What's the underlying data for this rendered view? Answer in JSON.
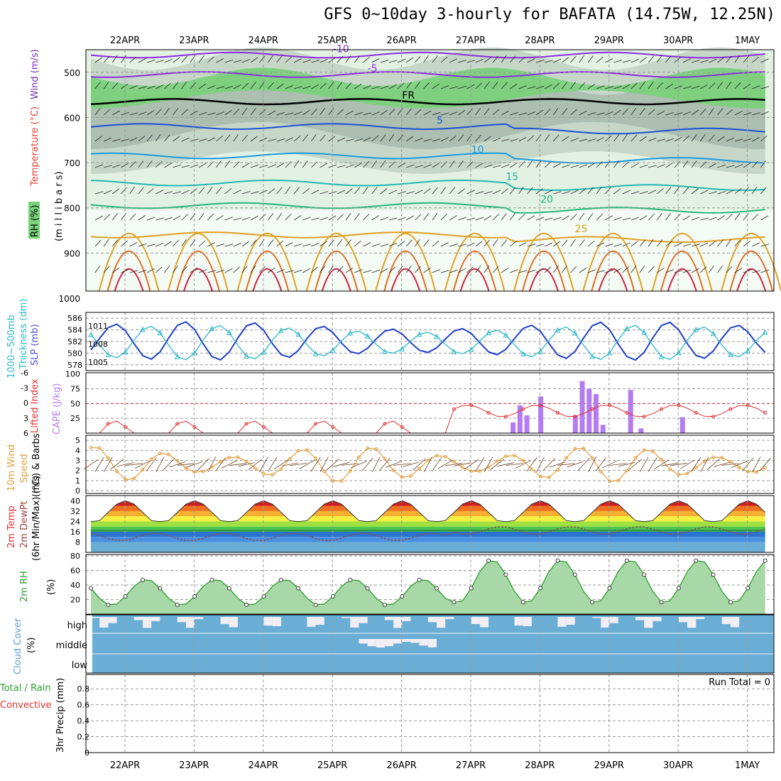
{
  "title": "GFS 0~10day 3-hourly for BAFATA (14.75W, 12.25N)",
  "colors": {
    "grid": "#9a9a9a",
    "rh_light": "#e3f1e3",
    "rh_mid": "#c2d4c4",
    "rh_sat": "#79d27a",
    "wind_mb": "#8a2be2",
    "slp": "#1f3fc8",
    "thickness": "#2ab8c8",
    "lifted": "#e03030",
    "cape": "#b57bf0",
    "wind10": "#e0a040",
    "barb": "#6a4020",
    "rh2m": "#2e9e2e",
    "cloud": "#6aaed6",
    "cloud_clear": "#f1eef4",
    "precip": "#2e9e2e"
  },
  "chart_data": {
    "days": [
      "22APR",
      "23APR",
      "24APR",
      "25APR",
      "26APR",
      "27APR",
      "28APR",
      "29APR",
      "30APR",
      "1MAY"
    ],
    "panels": [
      {
        "id": "upper_air",
        "type": "heatmap",
        "ylabels": [
          "Temperature (°C)",
          "Wind (m/s)",
          "RH (%)",
          "(m i l l i b a r s)"
        ],
        "yticks": [
          500,
          600,
          700,
          800,
          900,
          1000
        ],
        "ylim": [
          450,
          1000
        ],
        "contours": [
          {
            "label": "-10",
            "color": "#8a2be2",
            "level": 462
          },
          {
            "label": "-5",
            "color": "#8a2be2",
            "level": 505
          },
          {
            "label": "FR",
            "color": "#000000",
            "level": 565
          },
          {
            "label": "5",
            "color": "#1f4fd8",
            "level": 620
          },
          {
            "label": "10",
            "color": "#1a9be0",
            "level": 685
          },
          {
            "label": "15",
            "color": "#20b8b0",
            "level": 745
          },
          {
            "label": "20",
            "color": "#20b87a",
            "level": 795
          },
          {
            "label": "25",
            "color": "#e0a020",
            "level": 860
          }
        ]
      },
      {
        "id": "slp",
        "type": "line",
        "ylabels": [
          "Thickness (dm)",
          "1000~500mb",
          "SLP (mb)"
        ],
        "left_ticks": [
          578,
          580,
          582,
          584,
          586
        ],
        "right_ticks": [
          1005,
          1008,
          1011
        ],
        "series": [
          {
            "name": "SLP",
            "color": "#1f3fc8",
            "period_hours": 24,
            "mean": 1008.5,
            "amp": 3.2
          },
          {
            "name": "Thickness",
            "color": "#2ab8c8",
            "period_hours": 24,
            "mean": 581.8,
            "amp": 3.0
          }
        ]
      },
      {
        "id": "cape",
        "type": "bar",
        "ylabels": [
          "Lifted Index",
          "CAPE (J/kg)"
        ],
        "left_ticks": [
          "6",
          "3",
          "0",
          "-3",
          "-6"
        ],
        "right_ticks": [
          25,
          50,
          75,
          100
        ],
        "cape_bars": [
          [
            6.1,
            18
          ],
          [
            6.2,
            47
          ],
          [
            6.3,
            30
          ],
          [
            6.5,
            62
          ],
          [
            7.0,
            30
          ],
          [
            7.1,
            88
          ],
          [
            7.2,
            75
          ],
          [
            7.3,
            66
          ],
          [
            7.4,
            14
          ],
          [
            7.8,
            73
          ],
          [
            7.95,
            8
          ],
          [
            8.55,
            27
          ]
        ]
      },
      {
        "id": "wind10m",
        "type": "line",
        "ylabels": [
          "10m Wind",
          "Speed",
          "(m/s) & Barbs"
        ],
        "yticks": [
          0,
          1,
          2,
          3,
          4,
          5
        ],
        "ylim": [
          0,
          5.5
        ]
      },
      {
        "id": "temp2m",
        "type": "area",
        "ylabels": [
          "2m Temp",
          "2m DewPt",
          "(6hr Min/Max) (°C)"
        ],
        "yticks": [
          8,
          16,
          24,
          32,
          40
        ],
        "ylim": [
          0,
          44
        ]
      },
      {
        "id": "rh2m",
        "type": "area",
        "ylabels": [
          "2m RH",
          "(%)"
        ],
        "yticks": [
          20,
          40,
          60,
          80
        ],
        "ylim": [
          0,
          82
        ]
      },
      {
        "id": "cloud",
        "type": "heatmap",
        "ylabels": [
          "Cloud Cover",
          "(%)"
        ],
        "levels": [
          "high",
          "middle",
          "low"
        ]
      },
      {
        "id": "precip",
        "type": "bar",
        "ylabels": [
          "Total / Rain",
          "Convective",
          "3hr Precip (mm)"
        ],
        "yticks": [
          0,
          0.2,
          0.4,
          0.6,
          0.8
        ],
        "ylim": [
          0,
          0.98
        ],
        "run_total": "Run Total = 0"
      }
    ]
  }
}
